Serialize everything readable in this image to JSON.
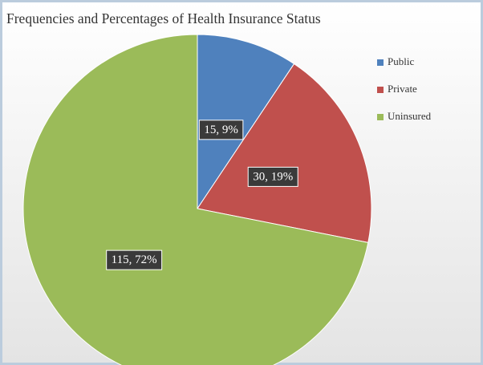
{
  "chart_data": {
    "type": "pie",
    "title": "Frequencies and Percentages of Health Insurance Status",
    "categories": [
      "Public",
      "Private",
      "Uninsured"
    ],
    "values": [
      15,
      30,
      115
    ],
    "value_labels": [
      "15, 9%",
      "30, 19%",
      "115, 72%"
    ],
    "colors": [
      "#4f81bd",
      "#c0504d",
      "#9bbb59"
    ],
    "legend": "right"
  }
}
